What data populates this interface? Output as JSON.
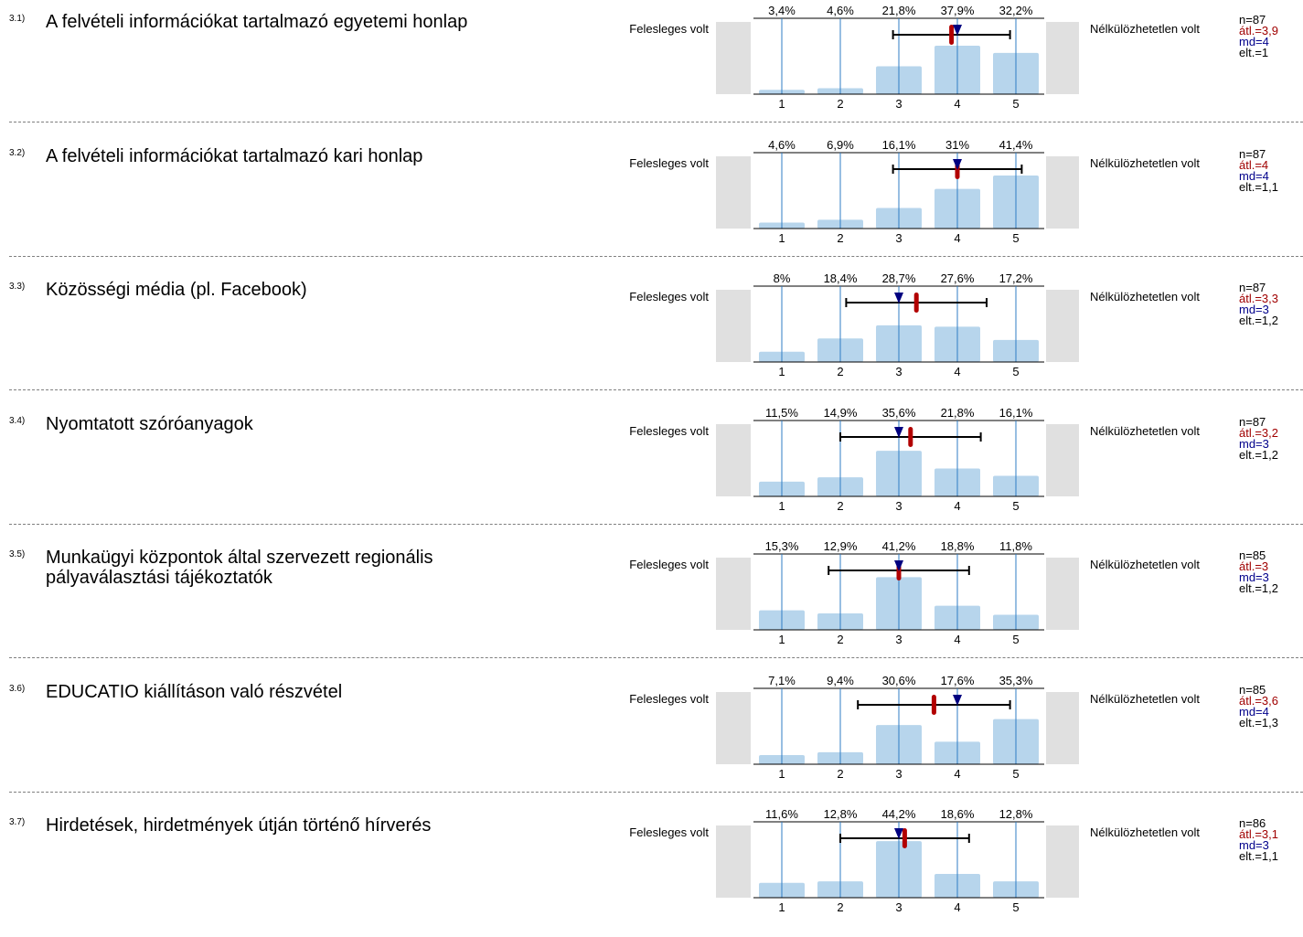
{
  "scale": {
    "left_label": "Felesleges volt",
    "right_label": "Nélkülözhetetlen volt",
    "ticks": [
      "1",
      "2",
      "3",
      "4",
      "5"
    ]
  },
  "colors": {
    "bar": "#b7d5ec",
    "grid": "#2f7dc5",
    "side_block": "#e0e0e0",
    "mean_marker": "#b20000",
    "median_marker": "#000080",
    "whisker": "#000000"
  },
  "chart_data": [
    {
      "type": "bar",
      "id": "3.1)",
      "title": "A felvételi információkat tartalmazó egyetemi honlap",
      "categories": [
        "1",
        "2",
        "3",
        "4",
        "5"
      ],
      "values": [
        3.4,
        4.6,
        21.8,
        37.9,
        32.2
      ],
      "value_labels": [
        "3,4%",
        "4,6%",
        "21,8%",
        "37,9%",
        "32,2%"
      ],
      "n": 87,
      "mean": 3.9,
      "median": 4,
      "sd": 1,
      "n_label": "n=87",
      "mean_label": "átl.=3,9",
      "md_label": "md=4",
      "sd_label": "elt.=1"
    },
    {
      "type": "bar",
      "id": "3.2)",
      "title": "A felvételi információkat tartalmazó kari honlap",
      "categories": [
        "1",
        "2",
        "3",
        "4",
        "5"
      ],
      "values": [
        4.6,
        6.9,
        16.1,
        31,
        41.4
      ],
      "value_labels": [
        "4,6%",
        "6,9%",
        "16,1%",
        "31%",
        "41,4%"
      ],
      "n": 87,
      "mean": 4,
      "median": 4,
      "sd": 1.1,
      "n_label": "n=87",
      "mean_label": "átl.=4",
      "md_label": "md=4",
      "sd_label": "elt.=1,1"
    },
    {
      "type": "bar",
      "id": "3.3)",
      "title": "Közösségi média (pl. Facebook)",
      "categories": [
        "1",
        "2",
        "3",
        "4",
        "5"
      ],
      "values": [
        8,
        18.4,
        28.7,
        27.6,
        17.2
      ],
      "value_labels": [
        "8%",
        "18,4%",
        "28,7%",
        "27,6%",
        "17,2%"
      ],
      "n": 87,
      "mean": 3.3,
      "median": 3,
      "sd": 1.2,
      "n_label": "n=87",
      "mean_label": "átl.=3,3",
      "md_label": "md=3",
      "sd_label": "elt.=1,2"
    },
    {
      "type": "bar",
      "id": "3.4)",
      "title": "Nyomtatott szóróanyagok",
      "categories": [
        "1",
        "2",
        "3",
        "4",
        "5"
      ],
      "values": [
        11.5,
        14.9,
        35.6,
        21.8,
        16.1
      ],
      "value_labels": [
        "11,5%",
        "14,9%",
        "35,6%",
        "21,8%",
        "16,1%"
      ],
      "n": 87,
      "mean": 3.2,
      "median": 3,
      "sd": 1.2,
      "n_label": "n=87",
      "mean_label": "átl.=3,2",
      "md_label": "md=3",
      "sd_label": "elt.=1,2"
    },
    {
      "type": "bar",
      "id": "3.5)",
      "title": "Munkaügyi központok által szervezett regionális pályaválasztási tájékoztatók",
      "categories": [
        "1",
        "2",
        "3",
        "4",
        "5"
      ],
      "values": [
        15.3,
        12.9,
        41.2,
        18.8,
        11.8
      ],
      "value_labels": [
        "15,3%",
        "12,9%",
        "41,2%",
        "18,8%",
        "11,8%"
      ],
      "n": 85,
      "mean": 3,
      "median": 3,
      "sd": 1.2,
      "n_label": "n=85",
      "mean_label": "átl.=3",
      "md_label": "md=3",
      "sd_label": "elt.=1,2"
    },
    {
      "type": "bar",
      "id": "3.6)",
      "title": "EDUCATIO kiállításon való részvétel",
      "categories": [
        "1",
        "2",
        "3",
        "4",
        "5"
      ],
      "values": [
        7.1,
        9.4,
        30.6,
        17.6,
        35.3
      ],
      "value_labels": [
        "7,1%",
        "9,4%",
        "30,6%",
        "17,6%",
        "35,3%"
      ],
      "n": 85,
      "mean": 3.6,
      "median": 4,
      "sd": 1.3,
      "n_label": "n=85",
      "mean_label": "átl.=3,6",
      "md_label": "md=4",
      "sd_label": "elt.=1,3"
    },
    {
      "type": "bar",
      "id": "3.7)",
      "title": "Hirdetések, hirdetmények útján történő hírverés",
      "categories": [
        "1",
        "2",
        "3",
        "4",
        "5"
      ],
      "values": [
        11.6,
        12.8,
        44.2,
        18.6,
        12.8
      ],
      "value_labels": [
        "11,6%",
        "12,8%",
        "44,2%",
        "18,6%",
        "12,8%"
      ],
      "n": 86,
      "mean": 3.1,
      "median": 3,
      "sd": 1.1,
      "n_label": "n=86",
      "mean_label": "átl.=3,1",
      "md_label": "md=3",
      "sd_label": "elt.=1,1"
    }
  ]
}
